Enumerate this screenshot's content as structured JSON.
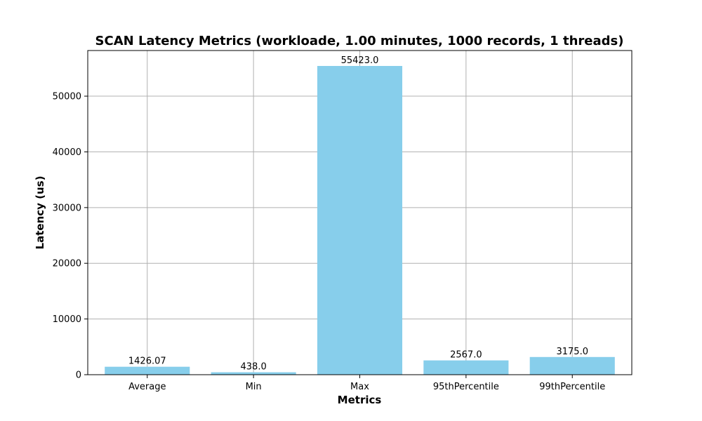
{
  "chart_data": {
    "type": "bar",
    "title": "SCAN Latency Metrics (workloade, 1.00 minutes, 1000 records, 1 threads)",
    "xlabel": "Metrics",
    "ylabel": "Latency (us)",
    "categories": [
      "Average",
      "Min",
      "Max",
      "95thPercentile",
      "99thPercentile"
    ],
    "values": [
      1426.07,
      438.0,
      55423.0,
      2567.0,
      3175.0
    ],
    "data_labels": [
      "1426.07",
      "438.0",
      "55423.0",
      "2567.0",
      "3175.0"
    ],
    "ylim": [
      0,
      58193
    ],
    "yticks": [
      0,
      10000,
      20000,
      30000,
      40000,
      50000
    ],
    "ytick_labels": [
      "0",
      "10000",
      "20000",
      "30000",
      "40000",
      "50000"
    ],
    "grid": true,
    "legend": "none",
    "colors": {
      "bar": "#87ceeb",
      "grid": "#b0b0b0",
      "axis": "#000000"
    }
  }
}
